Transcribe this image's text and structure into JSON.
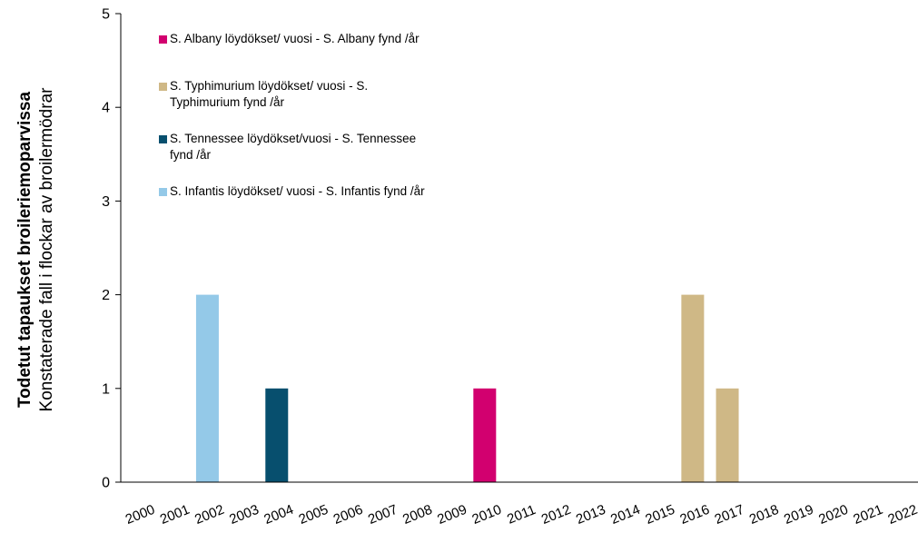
{
  "chart_data": {
    "type": "bar",
    "title": "",
    "ylabel_line1": "Todetut tapaukset  broileriemoparvissa",
    "ylabel_line2": "Konstaterade fall i flockar av broilermödrar",
    "ylim": [
      0,
      5
    ],
    "yticks": [
      0,
      1,
      2,
      3,
      4,
      5
    ],
    "grid": false,
    "legend_position": "top-left",
    "categories": [
      "2000",
      "2001",
      "2002",
      "2003",
      "2004",
      "2005",
      "2006",
      "2007",
      "2008",
      "2009",
      "2010",
      "2011",
      "2012",
      "2013",
      "2014",
      "2015",
      "2016",
      "2017",
      "2018",
      "2019",
      "2020",
      "2021",
      "2022"
    ],
    "series": [
      {
        "name": "S. Albany löydökset/ vuosi - S. Albany fynd /år",
        "color": "#D2006F",
        "values": [
          0,
          0,
          0,
          0,
          0,
          0,
          0,
          0,
          0,
          0,
          1,
          0,
          0,
          0,
          0,
          0,
          0,
          0,
          0,
          0,
          0,
          0,
          0
        ]
      },
      {
        "name": "S. Typhimurium löydökset/ vuosi - S. Typhimurium fynd /år",
        "color": "#CFB886",
        "values": [
          0,
          0,
          0,
          0,
          0,
          0,
          0,
          0,
          0,
          0,
          0,
          0,
          0,
          0,
          0,
          0,
          2,
          1,
          0,
          0,
          0,
          0,
          0
        ]
      },
      {
        "name": "S. Tennessee löydökset/vuosi - S. Tennessee fynd /år",
        "color": "#074F6E",
        "values": [
          0,
          0,
          0,
          0,
          1,
          0,
          0,
          0,
          0,
          0,
          0,
          0,
          0,
          0,
          0,
          0,
          0,
          0,
          0,
          0,
          0,
          0,
          0
        ]
      },
      {
        "name": "S. Infantis löydökset/ vuosi - S. Infantis fynd /år",
        "color": "#94C9E8",
        "values": [
          0,
          0,
          2,
          0,
          0,
          0,
          0,
          0,
          0,
          0,
          0,
          0,
          0,
          0,
          0,
          0,
          0,
          0,
          0,
          0,
          0,
          0,
          0
        ]
      }
    ],
    "legend_lines": [
      [
        "S. Albany löydökset/ vuosi - S. Albany fynd /år"
      ],
      [
        "S. Typhimurium löydökset/ vuosi - S.",
        "Typhimurium fynd /år"
      ],
      [
        "S. Tennessee löydökset/vuosi - S. Tennessee",
        "fynd /år"
      ],
      [
        "S. Infantis löydökset/ vuosi - S. Infantis fynd /år"
      ]
    ]
  }
}
